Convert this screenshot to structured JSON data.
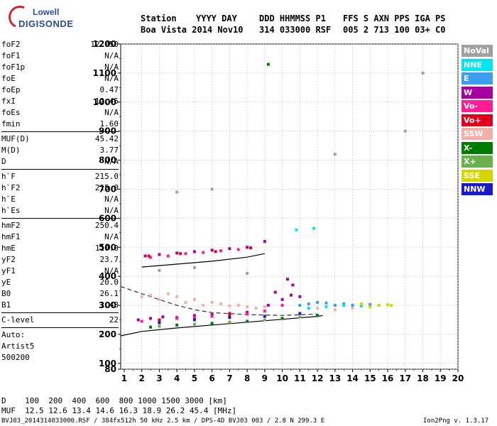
{
  "logo": {
    "line1": "Lowell",
    "line2": "DIGISONDE"
  },
  "header": {
    "row1": [
      "Station",
      "YYYY DAY",
      "DDD HHMMSS P1",
      "FFS S AXN PPS IGA PS"
    ],
    "row2": [
      "Boa Vista 2014 Nov10",
      "314 033000 RSF",
      "005 2 713 100 03+ C0"
    ]
  },
  "params": {
    "group1": [
      {
        "name": "foF2",
        "value": "12.050"
      },
      {
        "name": "foF1",
        "value": "N/A"
      },
      {
        "name": "foF1p",
        "value": "N/A"
      },
      {
        "name": "foE",
        "value": "N/A"
      },
      {
        "name": "foEp",
        "value": "0.47"
      },
      {
        "name": "fxI",
        "value": "12.45"
      },
      {
        "name": "foEs",
        "value": "N/A"
      },
      {
        "name": "fmin",
        "value": "1.60"
      }
    ],
    "group2": [
      {
        "name": "MUF(D)",
        "value": "45.42"
      },
      {
        "name": "M(D)",
        "value": "3.77"
      },
      {
        "name": "D",
        "value": "N/A"
      }
    ],
    "group3": [
      {
        "name": "h`F",
        "value": "215.0"
      },
      {
        "name": "h`F2",
        "value": "215.0"
      },
      {
        "name": "h`E",
        "value": "N/A"
      },
      {
        "name": "h`Es",
        "value": "N/A"
      }
    ],
    "group4": [
      {
        "name": "hmF2",
        "value": "250.4"
      },
      {
        "name": "hmF1",
        "value": "N/A"
      },
      {
        "name": "hmE",
        "value": "110.0"
      },
      {
        "name": "yF2",
        "value": "23.7"
      },
      {
        "name": "yF1",
        "value": "N/A"
      },
      {
        "name": "yE",
        "value": "20.0"
      },
      {
        "name": "B0",
        "value": "26.1"
      },
      {
        "name": "B1",
        "value": "1.48"
      }
    ],
    "group5": [
      {
        "name": "C-level",
        "value": "22"
      }
    ],
    "auto": [
      "Auto:",
      "Artist5",
      "500200"
    ]
  },
  "bottom": {
    "row1": "D    100  200  400  600  800 1000 1500 3000 [km]",
    "row2": "MUF  12.5 12.6 13.4 14.6 16.3 18.9 26.2 45.4 [MHz]",
    "footer_left": "BVJ03_2014314033000.RSF / 384fx512h 50 kHz 2.5 km / DPS-4D BVJ03 003 / 2.8 N 299.3 E",
    "footer_right": "Ion2Png v. 1.3.17"
  },
  "legend": [
    {
      "label": "NoVal",
      "color": "#a0a0a0"
    },
    {
      "label": "NNE",
      "color": "#00e5ee"
    },
    {
      "label": "E",
      "color": "#3d9df0"
    },
    {
      "label": "W",
      "color": "#a8009e"
    },
    {
      "label": "Vo-",
      "color": "#ff1c96"
    },
    {
      "label": "Vo+",
      "color": "#e0001a"
    },
    {
      "label": "SSW",
      "color": "#f2b0a8"
    },
    {
      "label": "X-",
      "color": "#007a00"
    },
    {
      "label": "X+",
      "color": "#6ab04c"
    },
    {
      "label": "SSE",
      "color": "#d6d600"
    },
    {
      "label": "NNW",
      "color": "#1a1acc"
    }
  ],
  "chart_data": {
    "type": "scatter",
    "xlim": [
      0.8,
      20
    ],
    "ylim": [
      80,
      1200
    ],
    "xticks": [
      "1",
      "2",
      "3",
      "4",
      "5",
      "6",
      "7",
      "8",
      "9",
      "10",
      "11",
      "12",
      "13",
      "14",
      "15",
      "16",
      "17",
      "18",
      "19",
      "20"
    ],
    "yticks": [
      "80",
      "100",
      "200",
      "300",
      "400",
      "500",
      "600",
      "700",
      "800",
      "900",
      "1000",
      "1100",
      "1200"
    ],
    "grid": true,
    "legend_position": "right",
    "series": [
      {
        "name": "W",
        "color": "#a8009e",
        "points": [
          [
            1.8,
            250
          ],
          [
            2.5,
            255
          ],
          [
            3.2,
            260
          ],
          [
            4,
            258
          ],
          [
            5,
            265
          ],
          [
            6,
            268
          ],
          [
            7,
            272
          ],
          [
            8,
            276
          ],
          [
            9.2,
            300
          ],
          [
            10,
            320
          ],
          [
            10.5,
            335
          ],
          [
            11,
            330
          ],
          [
            9.6,
            345
          ],
          [
            2.2,
            470
          ],
          [
            3,
            475
          ],
          [
            4,
            480
          ],
          [
            5,
            485
          ],
          [
            6,
            490
          ],
          [
            7,
            495
          ],
          [
            8,
            500
          ],
          [
            9,
            520
          ],
          [
            10.3,
            390
          ],
          [
            10.6,
            370
          ]
        ]
      },
      {
        "name": "Vo-",
        "color": "#ff1c96",
        "points": [
          [
            2,
            245
          ],
          [
            3,
            250
          ],
          [
            4,
            255
          ],
          [
            5,
            258
          ],
          [
            6,
            262
          ],
          [
            7,
            266
          ],
          [
            8,
            270
          ],
          [
            9,
            280
          ],
          [
            10,
            300
          ],
          [
            2.5,
            465
          ],
          [
            3.5,
            470
          ],
          [
            4.5,
            478
          ],
          [
            5.5,
            482
          ],
          [
            6.5,
            488
          ],
          [
            7.5,
            492
          ]
        ]
      },
      {
        "name": "Vo+",
        "color": "#e0001a",
        "points": [
          [
            2.4,
            470
          ],
          [
            4.2,
            478
          ],
          [
            6.2,
            485
          ],
          [
            8.2,
            498
          ],
          [
            3,
            248
          ],
          [
            7,
            268
          ]
        ]
      },
      {
        "name": "SSW",
        "color": "#f2b0a8",
        "points": [
          [
            2,
            330
          ],
          [
            2.5,
            335
          ],
          [
            3,
            320
          ],
          [
            3.5,
            340
          ],
          [
            4,
            330
          ],
          [
            4.5,
            310
          ],
          [
            5,
            320
          ],
          [
            5.5,
            300
          ],
          [
            6,
            310
          ],
          [
            6.5,
            305
          ],
          [
            7,
            298
          ],
          [
            7.5,
            300
          ],
          [
            8,
            295
          ],
          [
            8.5,
            290
          ],
          [
            9,
            295
          ],
          [
            12,
            290
          ],
          [
            13,
            285
          ],
          [
            14,
            290
          ],
          [
            15,
            300
          ]
        ]
      },
      {
        "name": "E",
        "color": "#3d9df0",
        "points": [
          [
            11,
            300
          ],
          [
            11.5,
            305
          ],
          [
            12,
            310
          ],
          [
            12.5,
            308
          ],
          [
            13,
            300
          ],
          [
            13.5,
            305
          ],
          [
            14,
            300
          ],
          [
            14.5,
            298
          ],
          [
            15,
            303
          ]
        ]
      },
      {
        "name": "NNE",
        "color": "#00e5ee",
        "points": [
          [
            11.5,
            290
          ],
          [
            12.5,
            295
          ],
          [
            13.5,
            300
          ],
          [
            14.5,
            300
          ],
          [
            10.8,
            560
          ],
          [
            11.8,
            565
          ]
        ]
      },
      {
        "name": "SSE",
        "color": "#d6d600",
        "points": [
          [
            15,
            295
          ],
          [
            15.5,
            300
          ],
          [
            16,
            302
          ],
          [
            16.2,
            300
          ],
          [
            14.5,
            305
          ]
        ]
      },
      {
        "name": "X-",
        "color": "#007a00",
        "points": [
          [
            2.5,
            225
          ],
          [
            4,
            232
          ],
          [
            6,
            238
          ],
          [
            8,
            245
          ],
          [
            10,
            255
          ],
          [
            12,
            265
          ],
          [
            9.2,
            1130
          ]
        ]
      },
      {
        "name": "X+",
        "color": "#6ab04c",
        "points": [
          [
            3,
            228
          ],
          [
            5,
            235
          ],
          [
            7,
            242
          ],
          [
            9,
            250
          ],
          [
            11,
            260
          ]
        ]
      },
      {
        "name": "NNW",
        "color": "#1a1acc",
        "points": [
          [
            3,
            240
          ],
          [
            5,
            250
          ],
          [
            7,
            258
          ],
          [
            9,
            262
          ],
          [
            11,
            272
          ]
        ]
      },
      {
        "name": "NoVal",
        "color": "#a0a0a0",
        "points": [
          [
            3,
            420
          ],
          [
            5,
            430
          ],
          [
            8,
            410
          ],
          [
            13,
            820
          ],
          [
            17,
            900
          ],
          [
            18,
            1100
          ],
          [
            6,
            700
          ],
          [
            4,
            690
          ]
        ]
      }
    ],
    "trace_lower": [
      [
        0.8,
        195
      ],
      [
        2,
        210
      ],
      [
        4,
        222
      ],
      [
        6,
        232
      ],
      [
        8,
        242
      ],
      [
        10,
        252
      ],
      [
        12,
        262
      ],
      [
        12.3,
        265
      ]
    ],
    "trace_upper": [
      [
        2,
        432
      ],
      [
        4,
        442
      ],
      [
        6,
        452
      ],
      [
        8,
        466
      ],
      [
        9,
        478
      ]
    ],
    "trace_dashed": [
      [
        0.8,
        365
      ],
      [
        2,
        340
      ],
      [
        3,
        320
      ],
      [
        4,
        300
      ],
      [
        5,
        285
      ],
      [
        6,
        275
      ],
      [
        8,
        268
      ],
      [
        10,
        265
      ],
      [
        12,
        270
      ]
    ]
  }
}
